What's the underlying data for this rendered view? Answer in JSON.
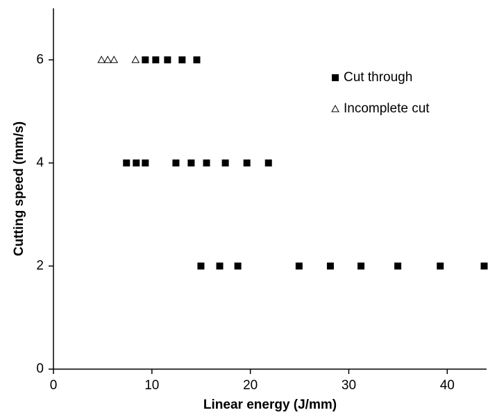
{
  "chart_data": {
    "type": "scatter",
    "xlabel": "Linear energy (J/mm)",
    "ylabel": "Cutting speed (mm/s)",
    "xlim": [
      0,
      44
    ],
    "ylim": [
      0,
      7
    ],
    "xticks": [
      0,
      10,
      20,
      30,
      40
    ],
    "yticks": [
      0,
      2,
      4,
      6
    ],
    "legend": "upper right",
    "series": [
      {
        "name": "Cut through",
        "color": "#000000",
        "marker": "square",
        "x": [
          9.33,
          10.39,
          11.59,
          13.07,
          14.56,
          7.42,
          8.41,
          9.33,
          12.44,
          13.99,
          15.55,
          17.46,
          19.65,
          21.84,
          14.98,
          16.89,
          18.73,
          24.95,
          28.13,
          31.24,
          34.98,
          39.29,
          43.75
        ],
        "values": [
          6,
          6,
          6,
          6,
          6,
          4,
          4,
          4,
          4,
          4,
          4,
          4,
          4,
          4,
          2,
          2,
          2,
          2,
          2,
          2,
          2,
          2,
          2
        ]
      },
      {
        "name": "Incomplete cut",
        "color": "#000000",
        "marker": "triangle",
        "x": [
          4.88,
          5.51,
          6.15,
          8.34
        ],
        "values": [
          6,
          6,
          6,
          6
        ]
      }
    ]
  }
}
